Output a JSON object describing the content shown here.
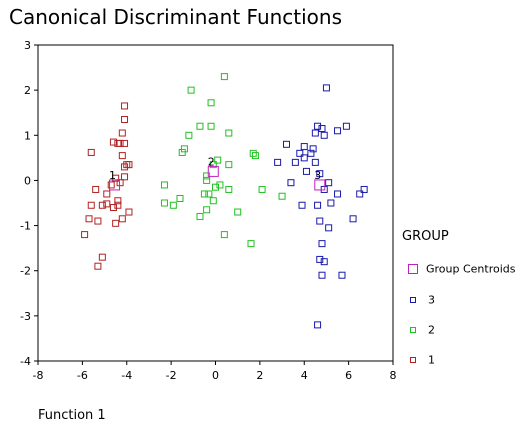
{
  "chart_data": {
    "type": "scatter",
    "title": "Canonical Discriminant Functions",
    "xlabel": "Function 1",
    "ylabel": "",
    "xlim": [
      -8,
      8
    ],
    "ylim": [
      -4,
      3
    ],
    "x_ticks": [
      "-8",
      "-6",
      "-4",
      "-2",
      "0",
      "2",
      "4",
      "6",
      "8"
    ],
    "y_ticks": [
      "3",
      "2",
      "1",
      "0",
      "-1",
      "-2",
      "-3",
      "-4"
    ],
    "legend": {
      "title": "GROUP",
      "position": "right",
      "entries": [
        "Group Centroids",
        "3",
        "2",
        "1"
      ]
    },
    "colors": {
      "1": "#b22222",
      "2": "#22c022",
      "3": "#1a1aaa",
      "centroid": "#c020c0"
    },
    "series": [
      {
        "name": "1",
        "points": [
          [
            -4.1,
            1.65
          ],
          [
            -4.1,
            1.35
          ],
          [
            -4.2,
            1.05
          ],
          [
            -4.6,
            0.85
          ],
          [
            -4.4,
            0.82
          ],
          [
            -4.3,
            0.82
          ],
          [
            -4.1,
            0.82
          ],
          [
            -4.2,
            0.55
          ],
          [
            -4.0,
            0.35
          ],
          [
            -4.1,
            0.3
          ],
          [
            -3.9,
            0.35
          ],
          [
            -5.6,
            0.62
          ],
          [
            -4.1,
            0.08
          ],
          [
            -4.5,
            0.05
          ],
          [
            -4.3,
            -0.05
          ],
          [
            -4.7,
            -0.1
          ],
          [
            -5.4,
            -0.2
          ],
          [
            -4.9,
            -0.3
          ],
          [
            -4.4,
            -0.45
          ],
          [
            -4.4,
            -0.55
          ],
          [
            -4.6,
            -0.6
          ],
          [
            -4.9,
            -0.52
          ],
          [
            -5.1,
            -0.55
          ],
          [
            -5.6,
            -0.55
          ],
          [
            -5.3,
            -0.9
          ],
          [
            -5.7,
            -0.85
          ],
          [
            -4.5,
            -0.95
          ],
          [
            -4.2,
            -0.85
          ],
          [
            -3.9,
            -0.7
          ],
          [
            -5.9,
            -1.2
          ],
          [
            -5.1,
            -1.7
          ],
          [
            -5.3,
            -1.9
          ]
        ]
      },
      {
        "name": "2",
        "points": [
          [
            0.4,
            2.3
          ],
          [
            -1.1,
            2.0
          ],
          [
            -0.2,
            1.72
          ],
          [
            -0.2,
            1.2
          ],
          [
            -0.7,
            1.2
          ],
          [
            -1.2,
            1.0
          ],
          [
            -1.4,
            0.7
          ],
          [
            -1.5,
            0.62
          ],
          [
            0.6,
            1.05
          ],
          [
            1.7,
            0.6
          ],
          [
            1.8,
            0.55
          ],
          [
            0.1,
            0.45
          ],
          [
            -0.1,
            0.35
          ],
          [
            0.6,
            0.35
          ],
          [
            -0.4,
            0.1
          ],
          [
            -0.4,
            0.0
          ],
          [
            -2.3,
            -0.1
          ],
          [
            0.2,
            -0.1
          ],
          [
            0.0,
            -0.15
          ],
          [
            2.1,
            -0.2
          ],
          [
            0.6,
            -0.2
          ],
          [
            -0.3,
            -0.3
          ],
          [
            -0.5,
            -0.3
          ],
          [
            3.0,
            -0.35
          ],
          [
            -1.6,
            -0.4
          ],
          [
            -2.3,
            -0.5
          ],
          [
            -1.9,
            -0.55
          ],
          [
            -0.1,
            -0.45
          ],
          [
            -0.4,
            -0.65
          ],
          [
            1.0,
            -0.7
          ],
          [
            -0.7,
            -0.8
          ],
          [
            0.4,
            -1.2
          ],
          [
            1.6,
            -1.4
          ]
        ]
      },
      {
        "name": "3",
        "points": [
          [
            5.0,
            2.05
          ],
          [
            4.6,
            1.2
          ],
          [
            4.8,
            1.15
          ],
          [
            4.5,
            1.05
          ],
          [
            4.9,
            1.0
          ],
          [
            5.5,
            1.1
          ],
          [
            5.9,
            1.2
          ],
          [
            3.2,
            0.8
          ],
          [
            4.0,
            0.75
          ],
          [
            4.4,
            0.7
          ],
          [
            3.8,
            0.6
          ],
          [
            4.3,
            0.6
          ],
          [
            4.5,
            0.4
          ],
          [
            2.8,
            0.4
          ],
          [
            3.6,
            0.4
          ],
          [
            4.0,
            0.5
          ],
          [
            4.1,
            0.2
          ],
          [
            4.7,
            0.15
          ],
          [
            5.1,
            -0.05
          ],
          [
            3.4,
            -0.05
          ],
          [
            4.9,
            -0.2
          ],
          [
            5.5,
            -0.3
          ],
          [
            6.7,
            -0.2
          ],
          [
            6.5,
            -0.3
          ],
          [
            3.9,
            -0.55
          ],
          [
            4.6,
            -0.55
          ],
          [
            5.2,
            -0.5
          ],
          [
            6.2,
            -0.85
          ],
          [
            5.1,
            -1.05
          ],
          [
            4.7,
            -0.9
          ],
          [
            4.8,
            -1.4
          ],
          [
            4.7,
            -1.75
          ],
          [
            4.9,
            -1.8
          ],
          [
            5.7,
            -2.1
          ],
          [
            4.8,
            -2.1
          ],
          [
            4.6,
            -3.2
          ]
        ]
      }
    ],
    "centroids": [
      {
        "group": "1",
        "label": "1",
        "x": -4.55,
        "y": -0.1
      },
      {
        "group": "2",
        "label": "2",
        "x": -0.1,
        "y": 0.2
      },
      {
        "group": "3",
        "label": "3",
        "x": 4.7,
        "y": -0.1
      }
    ]
  }
}
